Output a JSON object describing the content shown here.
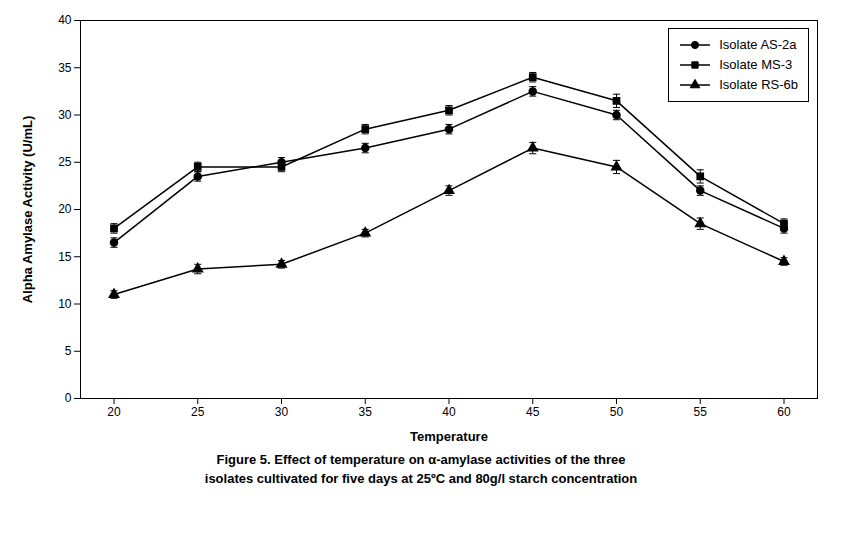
{
  "chart_data": {
    "type": "line",
    "x": [
      20,
      25,
      30,
      35,
      40,
      45,
      50,
      55,
      60
    ],
    "xlabel": "Temperature",
    "ylabel": "Alpha Amylase Activity (U/mL)",
    "xlim": [
      18,
      62
    ],
    "xticks": [
      20,
      25,
      30,
      35,
      40,
      45,
      50,
      55,
      60
    ],
    "ylim": [
      0,
      40
    ],
    "yticks": [
      0,
      5,
      10,
      15,
      20,
      25,
      30,
      35,
      40
    ],
    "grid": false,
    "legend": "upper right",
    "series": [
      {
        "name": "Isolate AS-2a",
        "color": "#000000",
        "marker": "circle",
        "line_style": "solid",
        "values": [
          16.5,
          23.5,
          25.0,
          26.5,
          28.5,
          32.5,
          30.0,
          22.0,
          18.0
        ],
        "errors": [
          0.5,
          0.5,
          0.5,
          0.5,
          0.5,
          0.5,
          0.5,
          0.5,
          0.5
        ]
      },
      {
        "name": "Isolate MS-3",
        "color": "#000000",
        "marker": "square",
        "line_style": "solid",
        "values": [
          18.0,
          24.5,
          24.5,
          28.5,
          30.5,
          34.0,
          31.5,
          23.5,
          18.5
        ],
        "errors": [
          0.5,
          0.5,
          0.5,
          0.5,
          0.5,
          0.5,
          0.7,
          0.7,
          0.5
        ]
      },
      {
        "name": "Isolate RS-6b",
        "color": "#000000",
        "marker": "triangle",
        "line_style": "solid",
        "values": [
          11.0,
          13.7,
          14.2,
          17.5,
          22.0,
          26.5,
          24.5,
          18.5,
          14.5
        ],
        "errors": [
          0.4,
          0.5,
          0.4,
          0.4,
          0.5,
          0.6,
          0.7,
          0.6,
          0.4
        ]
      }
    ],
    "caption": [
      "Figure 5. Effect of temperature on α-amylase activities of the three",
      "isolates cultivated for five days at 25ºC and 80g/l starch concentration"
    ]
  }
}
